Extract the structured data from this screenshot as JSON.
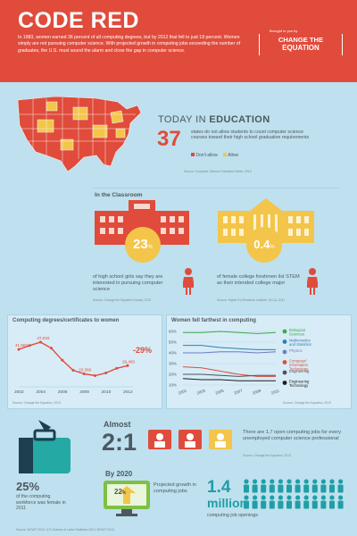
{
  "header": {
    "title": "CODE RED",
    "intro": "In 1983, women earned 36 percent of all computing degrees, but by 2012 that fell to just 18 percent. Women simply are not pursuing computer science. With projected growth in computing jobs exceeding the number of graduates, the U.S. must sound the alarm and close the gap in computer science.",
    "brought_by": "Brought to you by",
    "brand_top": "CHANGE THE",
    "brand_bottom": "EQUATION"
  },
  "today": {
    "heading_a": "TODAY IN",
    "heading_b": "EDUCATION",
    "big": "37",
    "text": "states do not allow students to count computer science courses toward their high school graduation requirements",
    "legend_dont": "Don't allow",
    "legend_allow": "Allow",
    "source": "Source: Computer Science Education Week, 2013",
    "colors": {
      "dont": "#e04b3b",
      "allow": "#f3c54a"
    }
  },
  "classroom": {
    "title": "In the Classroom",
    "left_pct": "23",
    "left_text": "of high school girls say they are interested in pursuing computer science",
    "left_source": "Source: Change the Equation Survey, 2013",
    "right_pct": "0.4",
    "right_text": "of female college freshmen list STEM as their intended college major",
    "right_source": "Source: Higher Ed Research Institute, UCLA, 2011"
  },
  "chart1": {
    "title": "Computing degrees/certificates to women",
    "source": "Source: Change the Equation, 2013",
    "delta": "-29%",
    "chart_data": {
      "type": "line",
      "title": "Computing degrees/certificates to women",
      "x": [
        "2002",
        "2004",
        "2006",
        "2008",
        "2010",
        "2012"
      ],
      "points": [
        [
          2002,
          41583
        ],
        [
          2003,
          44500
        ],
        [
          2004,
          47033
        ],
        [
          2005,
          42500
        ],
        [
          2006,
          33500
        ],
        [
          2007,
          26000
        ],
        [
          2008,
          23366
        ],
        [
          2009,
          22000
        ],
        [
          2010,
          24000
        ],
        [
          2011,
          27500
        ],
        [
          2012,
          29483
        ]
      ],
      "labels": [
        "41,583",
        "47,033",
        "23,366",
        "29,483"
      ],
      "ylim": [
        15000,
        55000
      ]
    }
  },
  "chart2": {
    "title": "Women fell farthest in computing",
    "source": "Source: Change the Equation, 2013",
    "chart_data": {
      "type": "line",
      "title": "Women fell farthest in computing",
      "y_ticks": [
        "60%",
        "50%",
        "40%",
        "30%",
        "20%",
        "10%"
      ],
      "x": [
        "2001",
        "2003",
        "2005",
        "2007",
        "2009",
        "2011"
      ],
      "ylim": [
        10,
        60
      ],
      "series": [
        {
          "name": "Biological Sciences",
          "color": "#3aa94a",
          "values": [
            59,
            59,
            60,
            59,
            58,
            59
          ]
        },
        {
          "name": "Mathematics and Statistics",
          "color": "#2d7fb8",
          "values": [
            47,
            47,
            45,
            44,
            43,
            43
          ]
        },
        {
          "name": "Physics",
          "color": "#6b7fc4",
          "values": [
            40,
            40,
            41,
            41,
            40,
            41
          ]
        },
        {
          "name": "Computer/ Information Technology",
          "color": "#e04b3b",
          "values": [
            27,
            26,
            23,
            20,
            18,
            18
          ]
        },
        {
          "name": "Engineering",
          "color": "#4a5560",
          "values": [
            20,
            20,
            19,
            18,
            19,
            19
          ]
        },
        {
          "name": "Engineering Technology",
          "color": "#1d1d1d",
          "values": [
            16,
            15,
            15,
            14,
            14,
            14
          ]
        }
      ]
    }
  },
  "workforce": {
    "pct": "25",
    "text": "of the computing workforce was female in 2011"
  },
  "ratio": {
    "almost": "Almost",
    "big": "2:1",
    "text": "There are 1.7 open computing jobs for every unemployed computer science professional",
    "source": "Source: Change the Equation, 2013"
  },
  "growth": {
    "heading": "By 2020",
    "pct": "22",
    "text": "Projected growth in computing jobs",
    "big_a": "1.4",
    "big_b": "million",
    "caption": "computing job openings"
  },
  "footer": {
    "source": "Source: BCWIT 2012, U.S. Bureau of Labor Statistics 2012; BCWIT 2013"
  }
}
